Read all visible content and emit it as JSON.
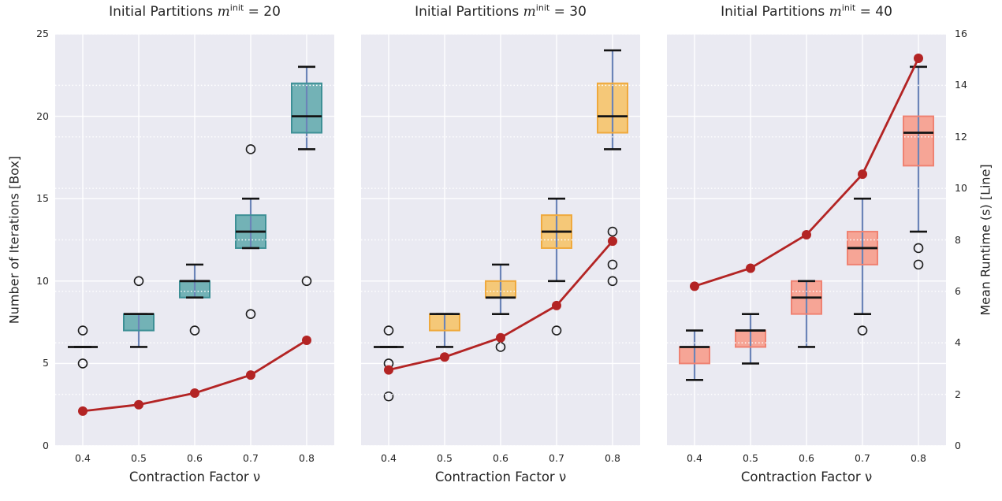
{
  "chart_data": {
    "type": "box+line",
    "x_label": "Contraction Factor ν",
    "x_ticklabels": [
      "0.4",
      "0.5",
      "0.6",
      "0.7",
      "0.8"
    ],
    "left_axis": {
      "label": "Number of Iterations [Box]",
      "ticks": [
        0,
        5,
        10,
        15,
        20,
        25
      ],
      "lim": [
        0,
        25
      ]
    },
    "right_axis": {
      "label": "Mean Runtime (s) [Line]",
      "ticks": [
        0,
        2,
        4,
        6,
        8,
        10,
        12,
        14,
        16
      ],
      "lim": [
        0,
        16
      ]
    },
    "legend_position": "none",
    "grid": {
      "solid_on_left_ticks": true,
      "dotted_on_right_ticks": true
    },
    "colors": {
      "plot_bg": "#eaeaf2",
      "grid": "#ffffff",
      "line": "#b32424",
      "whisker": "#6b84b8",
      "median": "#141414",
      "flier": "#1c1c1c"
    },
    "subplots": [
      {
        "title_parts": {
          "prefix": "Initial Partitions ",
          "var": "m",
          "sup": "init",
          "suffix": " = 20"
        },
        "box_fill": "#73b2b6",
        "box_edge": "#3e9096",
        "boxes": [
          {
            "lo": 6,
            "q1": 6,
            "med": 6,
            "q3": 6,
            "hi": 6,
            "fliers": [
              7,
              5
            ]
          },
          {
            "lo": 6,
            "q1": 7,
            "med": 8,
            "q3": 8,
            "hi": 8,
            "fliers": [
              10
            ]
          },
          {
            "lo": 9,
            "q1": 9,
            "med": 10,
            "q3": 10,
            "hi": 11,
            "fliers": [
              7
            ]
          },
          {
            "lo": 12,
            "q1": 12,
            "med": 13,
            "q3": 14,
            "hi": 15,
            "fliers": [
              18,
              8
            ]
          },
          {
            "lo": 18,
            "q1": 19,
            "med": 20,
            "q3": 22,
            "hi": 23,
            "fliers": [
              10
            ]
          }
        ],
        "runtime_line": [
          1.35,
          1.6,
          2.05,
          2.75,
          4.1
        ]
      },
      {
        "title_parts": {
          "prefix": "Initial Partitions ",
          "var": "m",
          "sup": "init",
          "suffix": " = 30"
        },
        "box_fill": "#f5c878",
        "box_edge": "#efa93d",
        "boxes": [
          {
            "lo": 6,
            "q1": 6,
            "med": 6,
            "q3": 6,
            "hi": 6,
            "fliers": [
              7,
              5,
              3
            ]
          },
          {
            "lo": 6,
            "q1": 7,
            "med": 8,
            "q3": 8,
            "hi": 8,
            "fliers": []
          },
          {
            "lo": 8,
            "q1": 9,
            "med": 9,
            "q3": 10,
            "hi": 11,
            "fliers": [
              6
            ]
          },
          {
            "lo": 10,
            "q1": 12,
            "med": 13,
            "q3": 14,
            "hi": 15,
            "fliers": [
              7
            ]
          },
          {
            "lo": 18,
            "q1": 19,
            "med": 20,
            "q3": 22,
            "hi": 24,
            "fliers": [
              13,
              11,
              10
            ]
          }
        ],
        "runtime_line": [
          2.95,
          3.45,
          4.2,
          5.45,
          7.95
        ]
      },
      {
        "title_parts": {
          "prefix": "Initial Partitions ",
          "var": "m",
          "sup": "init",
          "suffix": " = 40"
        },
        "box_fill": "#f6a596",
        "box_edge": "#ef8272",
        "boxes": [
          {
            "lo": 4,
            "q1": 5,
            "med": 6,
            "q3": 6,
            "hi": 7,
            "fliers": []
          },
          {
            "lo": 5,
            "q1": 6,
            "med": 7,
            "q3": 7,
            "hi": 8,
            "fliers": []
          },
          {
            "lo": 6,
            "q1": 8,
            "med": 9,
            "q3": 10,
            "hi": 10,
            "fliers": []
          },
          {
            "lo": 8,
            "q1": 11,
            "med": 12,
            "q3": 13,
            "hi": 15,
            "fliers": [
              7
            ]
          },
          {
            "lo": 13,
            "q1": 17,
            "med": 19,
            "q3": 20,
            "hi": 23,
            "fliers": [
              12,
              11
            ]
          }
        ],
        "runtime_line": [
          6.2,
          6.9,
          8.2,
          10.55,
          15.05
        ]
      }
    ]
  }
}
